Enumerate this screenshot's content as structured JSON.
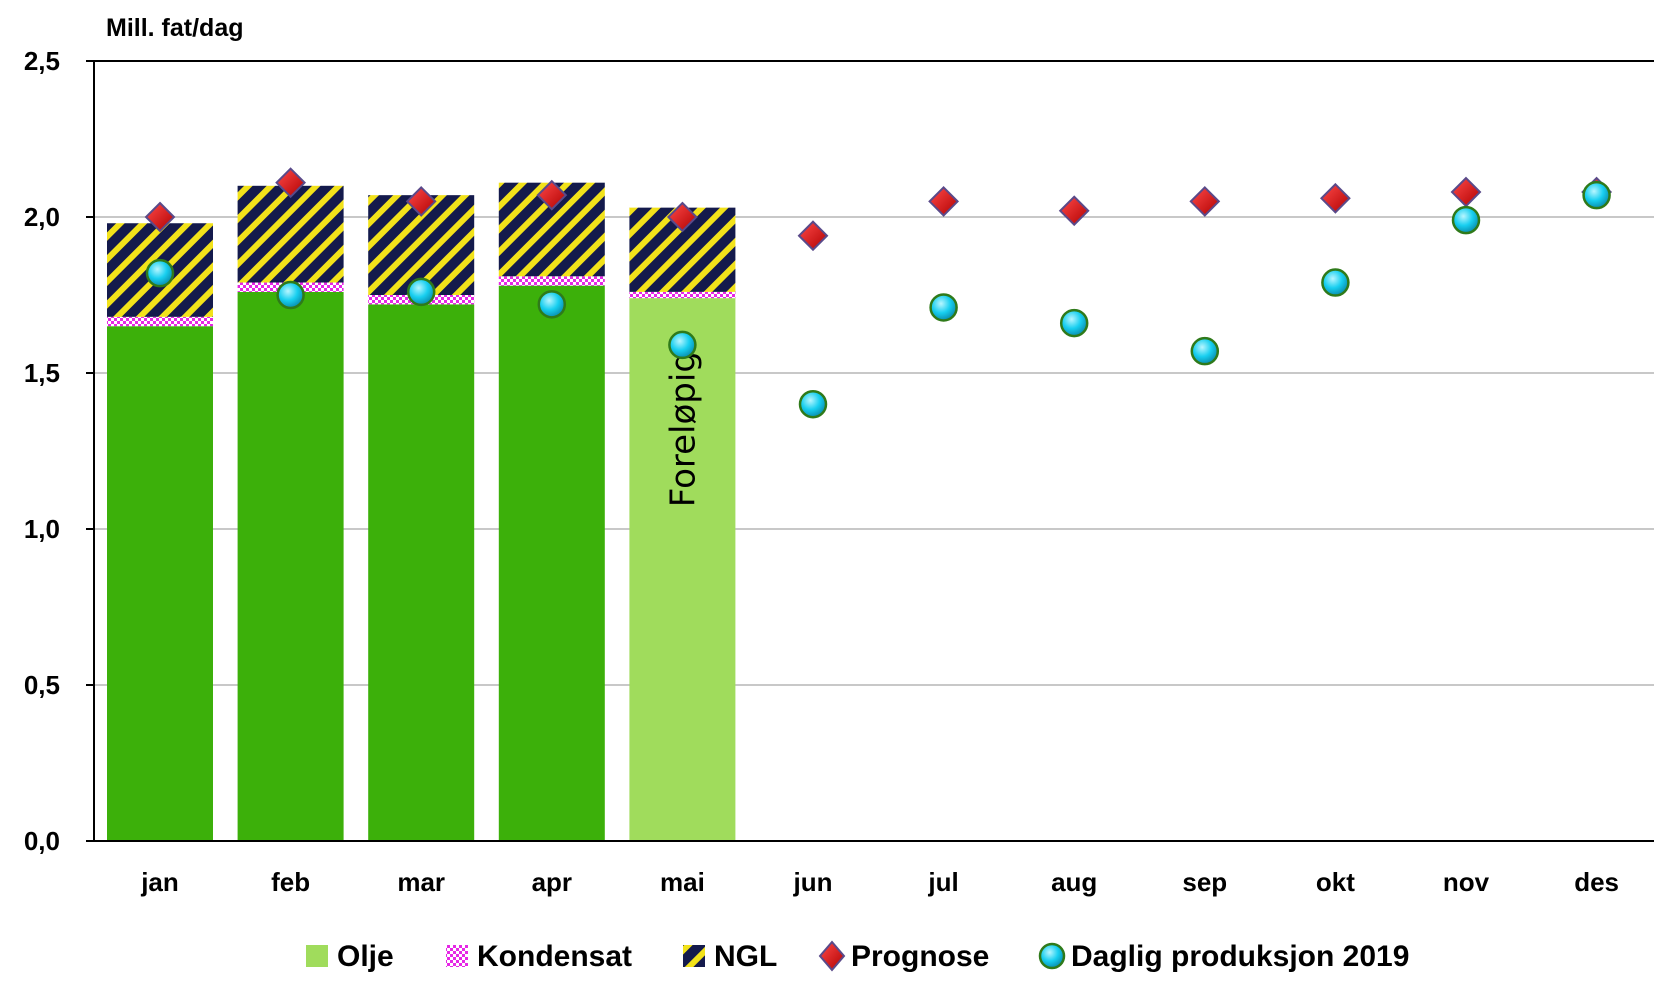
{
  "chart_data": {
    "type": "bar",
    "stacked": true,
    "ylabel": "Mill. fat/dag",
    "ylim": [
      0,
      2.5
    ],
    "yticks": [
      "0,0",
      "0,5",
      "1,0",
      "1,5",
      "2,0",
      "2,5"
    ],
    "ytick_values": [
      0,
      0.5,
      1.0,
      1.5,
      2.0,
      2.5
    ],
    "categories": [
      "jan",
      "feb",
      "mar",
      "apr",
      "mai",
      "jun",
      "jul",
      "aug",
      "sep",
      "okt",
      "nov",
      "des"
    ],
    "grid": true,
    "legend_position": "bottom",
    "series": [
      {
        "name": "Olje",
        "kind": "bar",
        "color": "#3cb00a",
        "preliminary_color": "#a0dc5c",
        "values": [
          1.65,
          1.76,
          1.72,
          1.78,
          1.74,
          null,
          null,
          null,
          null,
          null,
          null,
          null
        ]
      },
      {
        "name": "Kondensat",
        "kind": "bar",
        "pattern": "checker-magenta",
        "values": [
          0.03,
          0.03,
          0.03,
          0.03,
          0.02,
          null,
          null,
          null,
          null,
          null,
          null,
          null
        ]
      },
      {
        "name": "NGL",
        "kind": "bar",
        "pattern": "stripe-navy-yellow",
        "values": [
          0.3,
          0.31,
          0.32,
          0.3,
          0.27,
          null,
          null,
          null,
          null,
          null,
          null,
          null
        ]
      },
      {
        "name": "Prognose",
        "kind": "marker",
        "marker": "diamond",
        "color": "#dd0000",
        "values": [
          2.0,
          2.11,
          2.05,
          2.07,
          2.0,
          1.94,
          2.05,
          2.02,
          2.05,
          2.06,
          2.08,
          2.08
        ]
      },
      {
        "name": "Daglig produksjon 2019",
        "kind": "marker",
        "marker": "circle",
        "color": "#18cff0",
        "values": [
          1.82,
          1.75,
          1.76,
          1.72,
          1.59,
          1.4,
          1.71,
          1.66,
          1.57,
          1.79,
          1.99,
          2.07
        ]
      }
    ],
    "annotations": [
      {
        "category": "mai",
        "text": "Foreløpig"
      }
    ]
  }
}
